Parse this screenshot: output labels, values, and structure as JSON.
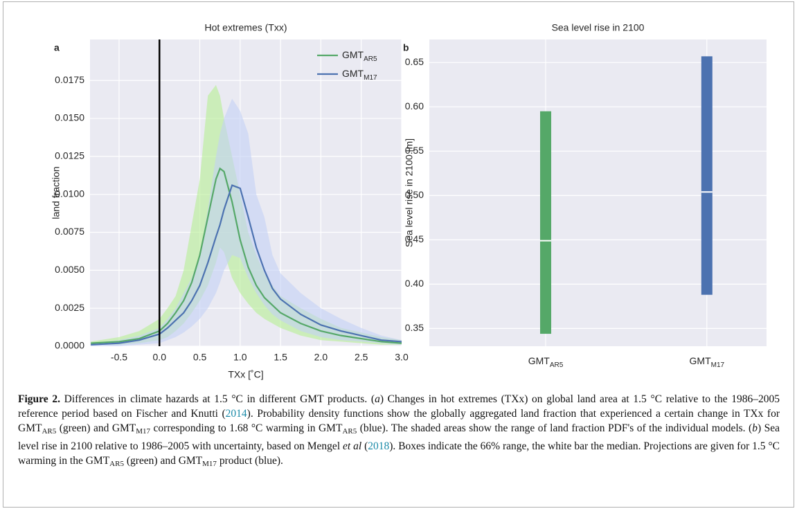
{
  "chart_data": [
    {
      "type": "line",
      "panel_label": "a",
      "title": "Hot extremes (Txx)",
      "x_label": "TXx [˚C]",
      "y_label": "land fraction",
      "xlim": [
        -0.86,
        3.0
      ],
      "ylim": [
        0,
        0.0202
      ],
      "xticks": [
        -0.5,
        {
          "value": 0,
          "label": "0.0"
        },
        0.5,
        {
          "value": 1,
          "label": "1.0"
        },
        1.5,
        {
          "value": 2,
          "label": "2.0"
        },
        2.5,
        {
          "value": 3,
          "label": "3.0"
        }
      ],
      "yticks": [
        {
          "value": 0,
          "label": "0.0000"
        },
        {
          "value": 0.0025,
          "label": "0.0025"
        },
        {
          "value": 0.005,
          "label": "0.0050"
        },
        {
          "value": 0.0075,
          "label": "0.0075"
        },
        {
          "value": 0.01,
          "label": "0.0100"
        },
        {
          "value": 0.0125,
          "label": "0.0125"
        },
        {
          "value": 0.015,
          "label": "0.0150"
        },
        {
          "value": 0.0175,
          "label": "0.0175"
        }
      ],
      "grid": true,
      "legend": "upper right",
      "vline": 0,
      "vline_color": "#000000",
      "x": [
        -0.85,
        -0.5,
        -0.25,
        0,
        0.1,
        0.2,
        0.3,
        0.4,
        0.5,
        0.6,
        0.7,
        0.75,
        0.8,
        0.9,
        1.0,
        1.1,
        1.2,
        1.3,
        1.4,
        1.5,
        1.75,
        2.0,
        2.25,
        2.5,
        2.75,
        3.0
      ],
      "series": [
        {
          "name": "GMT",
          "subscript": "AR5",
          "color": "#55a868",
          "band_color": "#b5ee93",
          "values": [
            0.0002,
            0.0003,
            0.0005,
            0.001,
            0.0015,
            0.0022,
            0.003,
            0.0042,
            0.006,
            0.0085,
            0.011,
            0.0117,
            0.0115,
            0.0095,
            0.007,
            0.0052,
            0.004,
            0.0032,
            0.0027,
            0.0022,
            0.0015,
            0.001,
            0.0007,
            0.0005,
            0.0003,
            0.0002
          ],
          "lower": [
            0.0001,
            0.0001,
            0.0002,
            0.0004,
            0.0006,
            0.001,
            0.0015,
            0.0022,
            0.003,
            0.004,
            0.0055,
            0.0065,
            0.0062,
            0.0045,
            0.0035,
            0.0028,
            0.0022,
            0.0018,
            0.0015,
            0.0012,
            0.0007,
            0.0004,
            0.0003,
            0.0002,
            0.0001,
            0.0001
          ],
          "upper": [
            0.0003,
            0.0006,
            0.001,
            0.0018,
            0.0025,
            0.0033,
            0.005,
            0.008,
            0.011,
            0.0165,
            0.0172,
            0.0165,
            0.015,
            0.0125,
            0.01,
            0.0075,
            0.006,
            0.0048,
            0.004,
            0.0033,
            0.0025,
            0.0018,
            0.0012,
            0.0009,
            0.0006,
            0.0004
          ]
        },
        {
          "name": "GMT",
          "subscript": "M17",
          "color": "#4c72b0",
          "band_color": "#c3d1f5",
          "values": [
            0.0001,
            0.0002,
            0.0004,
            0.0008,
            0.0012,
            0.0017,
            0.0022,
            0.003,
            0.004,
            0.0055,
            0.0072,
            0.008,
            0.009,
            0.0106,
            0.0104,
            0.0085,
            0.0065,
            0.005,
            0.0038,
            0.0031,
            0.0021,
            0.0014,
            0.001,
            0.0007,
            0.0004,
            0.0003
          ],
          "lower": [
            0,
            0,
            0.0001,
            0.0002,
            0.0004,
            0.0006,
            0.0009,
            0.0013,
            0.0018,
            0.0025,
            0.0035,
            0.0042,
            0.005,
            0.006,
            0.0058,
            0.0045,
            0.0035,
            0.0027,
            0.0021,
            0.0017,
            0.001,
            0.0006,
            0.0004,
            0.0003,
            0.0002,
            0.0001
          ],
          "upper": [
            0.0002,
            0.0004,
            0.0007,
            0.0012,
            0.0018,
            0.0025,
            0.0035,
            0.0045,
            0.006,
            0.009,
            0.0125,
            0.014,
            0.015,
            0.0163,
            0.0155,
            0.014,
            0.01,
            0.0085,
            0.006,
            0.0048,
            0.0035,
            0.0025,
            0.0018,
            0.0012,
            0.0007,
            0.0004
          ]
        }
      ]
    },
    {
      "type": "range_bar",
      "panel_label": "b",
      "title": "Sea level rise in 2100",
      "y_label": "Sea level rise in 2100 [m]",
      "ylim": [
        0.33,
        0.676
      ],
      "yticks": [
        0.35,
        {
          "value": 0.4,
          "label": "0.40"
        },
        0.45,
        {
          "value": 0.5,
          "label": "0.50"
        },
        0.55,
        {
          "value": 0.6,
          "label": "0.60"
        },
        0.65
      ],
      "grid": true,
      "median_color": "#ffffff",
      "series": [
        {
          "name": "GMT",
          "subscript": "AR5",
          "color": "#55a868",
          "low": 0.344,
          "high": 0.595,
          "median": 0.449
        },
        {
          "name": "GMT",
          "subscript": "M17",
          "color": "#4c72b0",
          "low": 0.388,
          "high": 0.657,
          "median": 0.504
        }
      ]
    }
  ],
  "caption": {
    "runs": [
      {
        "text": "Figure 2.",
        "style": "bold"
      },
      {
        "text": " Differences in climate hazards at 1.5 °C in different GMT products. (",
        "style": "plain"
      },
      {
        "text": "a",
        "style": "italic"
      },
      {
        "text": ") Changes in hot extremes (TXx) on global land area at 1.5 °C relative to the 1986–2005 reference period based on Fischer and Knutti (",
        "style": "plain"
      },
      {
        "text": "2014",
        "style": "link"
      },
      {
        "text": "). Probability density functions show the globally aggregated land fraction that experienced a certain change in TXx for GMT",
        "style": "plain"
      },
      {
        "text": "AR5",
        "style": "sub"
      },
      {
        "text": " (green) and GMT",
        "style": "plain"
      },
      {
        "text": "M17",
        "style": "sub"
      },
      {
        "text": " corresponding to 1.68 °C warming in GMT",
        "style": "plain"
      },
      {
        "text": "AR5",
        "style": "sub"
      },
      {
        "text": " (blue). The shaded areas show the range of land fraction PDF's of the individual models. (",
        "style": "plain"
      },
      {
        "text": "b",
        "style": "italic"
      },
      {
        "text": ") Sea level rise in 2100 relative to 1986–2005 with uncertainty, based on Mengel ",
        "style": "plain"
      },
      {
        "text": "et al",
        "style": "italic"
      },
      {
        "text": " (",
        "style": "plain"
      },
      {
        "text": "2018",
        "style": "link"
      },
      {
        "text": "). Boxes indicate the 66% range, the white bar the median. Projections are given for 1.5 °C warming in the GMT",
        "style": "plain"
      },
      {
        "text": "AR5",
        "style": "sub"
      },
      {
        "text": " (green) and GMT",
        "style": "plain"
      },
      {
        "text": "M17",
        "style": "sub"
      },
      {
        "text": " product (blue).",
        "style": "plain"
      }
    ]
  }
}
